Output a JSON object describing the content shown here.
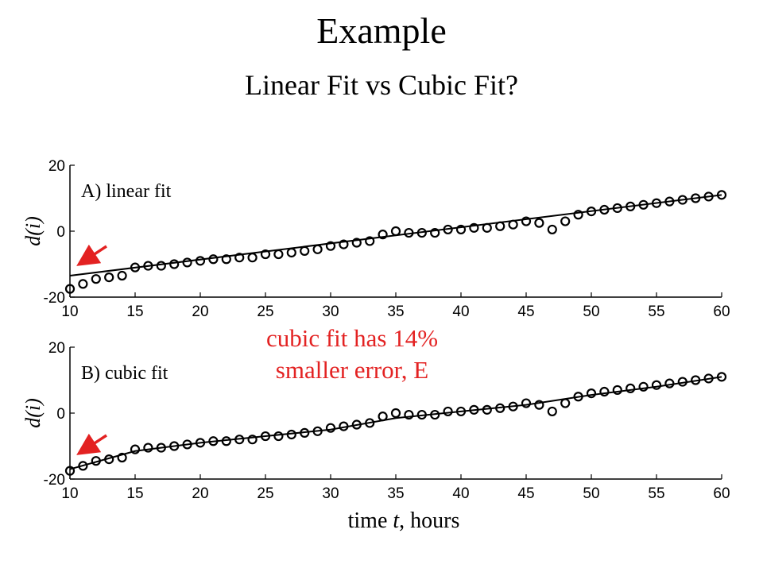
{
  "slide": {
    "title": "Example",
    "subtitle": "Linear Fit vs Cubic Fit?"
  },
  "callout": {
    "line1": "cubic fit has 14%",
    "line2": "smaller error, E"
  },
  "xlabel": {
    "prefix": "time ",
    "var": "t",
    "suffix": ", hours"
  },
  "colors": {
    "callout": "#e32222",
    "arrow": "#e32222",
    "ink": "#000000"
  },
  "chart_data": [
    {
      "type": "scatter",
      "label": "A) linear fit",
      "ylabel": "d(i)",
      "xlim": [
        10,
        60
      ],
      "ylim": [
        -20,
        20
      ],
      "xticks": [
        10,
        15,
        20,
        25,
        30,
        35,
        40,
        45,
        50,
        55,
        60
      ],
      "yticks": [
        -20,
        0,
        20
      ],
      "fit": {
        "kind": "linear",
        "x": [
          10,
          60
        ],
        "y": [
          -13.5,
          11
        ]
      },
      "x": [
        10.0,
        11.0,
        12.0,
        13.0,
        14.0,
        15.0,
        16.0,
        17.0,
        18.0,
        19.0,
        20.0,
        21.0,
        22.0,
        23.0,
        24.0,
        25.0,
        26.0,
        27.0,
        28.0,
        29.0,
        30.0,
        31.0,
        32.0,
        33.0,
        34.0,
        35.0,
        36.0,
        37.0,
        38.0,
        39.0,
        40.0,
        41.0,
        42.0,
        43.0,
        44.0,
        45.0,
        46.0,
        47.0,
        48.0,
        49.0,
        50.0,
        51.0,
        52.0,
        53.0,
        54.0,
        55.0,
        56.0,
        57.0,
        58.0,
        59.0,
        60.0
      ],
      "y": [
        -17.5,
        -16,
        -14.5,
        -14,
        -13.5,
        -11,
        -10.5,
        -10.5,
        -10,
        -9.5,
        -9,
        -8.5,
        -8.5,
        -8,
        -8,
        -7,
        -7,
        -6.5,
        -6,
        -5.5,
        -4.5,
        -4,
        -3.5,
        -3,
        -1,
        0,
        -0.5,
        -0.5,
        -0.5,
        0.5,
        0.5,
        1,
        1,
        1.5,
        2,
        3,
        2.5,
        0.5,
        3,
        5,
        6,
        6.5,
        7,
        7.5,
        8,
        8.5,
        9,
        9.5,
        10,
        10.5,
        11
      ]
    },
    {
      "type": "scatter",
      "label": "B) cubic fit",
      "ylabel": "d(i)",
      "xlim": [
        10,
        60
      ],
      "ylim": [
        -20,
        20
      ],
      "xticks": [
        10,
        15,
        20,
        25,
        30,
        35,
        40,
        45,
        50,
        55,
        60
      ],
      "yticks": [
        -20,
        0,
        20
      ],
      "fit": {
        "kind": "cubic",
        "x": [
          10,
          15,
          20,
          25,
          30,
          35,
          40,
          45,
          50,
          55,
          60
        ],
        "y": [
          -17,
          -11.5,
          -9,
          -7,
          -5,
          -1.5,
          0.5,
          2.5,
          5.5,
          8,
          11
        ]
      },
      "x": [
        10.0,
        11.0,
        12.0,
        13.0,
        14.0,
        15.0,
        16.0,
        17.0,
        18.0,
        19.0,
        20.0,
        21.0,
        22.0,
        23.0,
        24.0,
        25.0,
        26.0,
        27.0,
        28.0,
        29.0,
        30.0,
        31.0,
        32.0,
        33.0,
        34.0,
        35.0,
        36.0,
        37.0,
        38.0,
        39.0,
        40.0,
        41.0,
        42.0,
        43.0,
        44.0,
        45.0,
        46.0,
        47.0,
        48.0,
        49.0,
        50.0,
        51.0,
        52.0,
        53.0,
        54.0,
        55.0,
        56.0,
        57.0,
        58.0,
        59.0,
        60.0
      ],
      "y": [
        -17.5,
        -16,
        -14.5,
        -14,
        -13.5,
        -11,
        -10.5,
        -10.5,
        -10,
        -9.5,
        -9,
        -8.5,
        -8.5,
        -8,
        -8,
        -7,
        -7,
        -6.5,
        -6,
        -5.5,
        -4.5,
        -4,
        -3.5,
        -3,
        -1,
        0,
        -0.5,
        -0.5,
        -0.5,
        0.5,
        0.5,
        1,
        1,
        1.5,
        2,
        3,
        2.5,
        0.5,
        3,
        5,
        6,
        6.5,
        7,
        7.5,
        8,
        8.5,
        9,
        9.5,
        10,
        10.5,
        11
      ]
    }
  ]
}
